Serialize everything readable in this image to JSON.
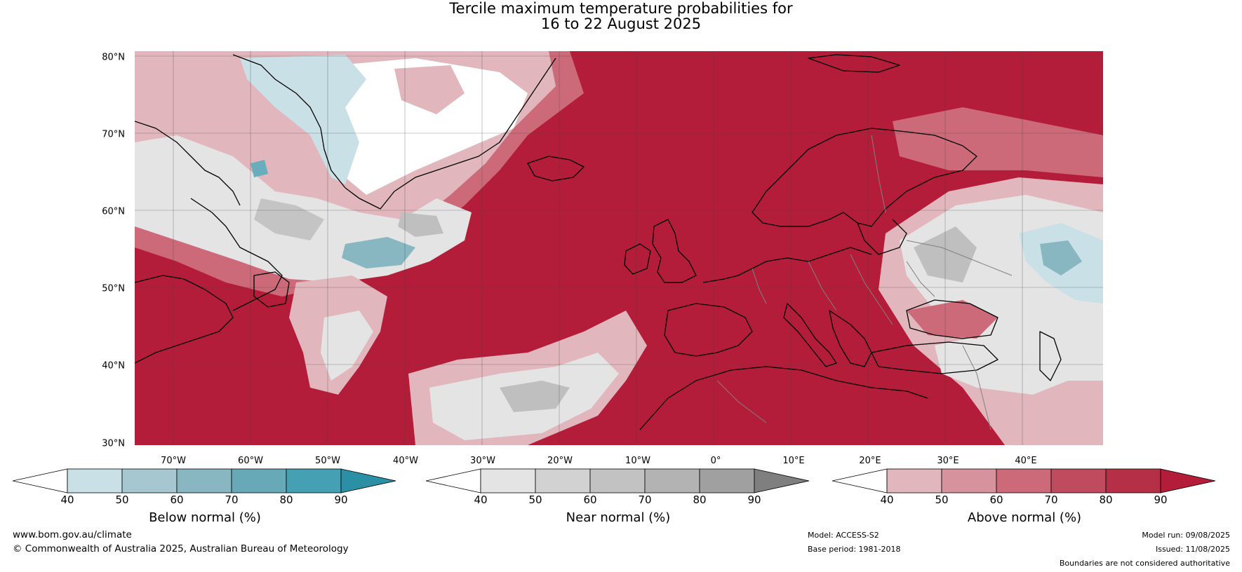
{
  "title": {
    "line1": "Tercile maximum temperature probabilities for",
    "line2": "16 to 22 August 2025"
  },
  "map": {
    "lat_labels": [
      "80°N",
      "70°N",
      "60°N",
      "50°N",
      "40°N",
      "30°N"
    ],
    "lon_labels": [
      "70°W",
      "60°W",
      "50°W",
      "40°W",
      "30°W",
      "20°W",
      "10°W",
      "0°",
      "10°E",
      "20°E",
      "30°E",
      "40°E"
    ],
    "colors": {
      "above_normal_90": "#b31d39",
      "above_normal_70": "#cc6a7a",
      "above_normal_50": "#e1b6bd",
      "near_normal_70": "#bfbfbf",
      "near_normal_50": "#e4e4e4",
      "below_normal_50": "#c9e0e6",
      "below_normal_70": "#6aadbc",
      "coastline": "#000000",
      "borders": "#808080"
    }
  },
  "colorbars": [
    {
      "label": "Below normal (%)",
      "ticks": [
        "40",
        "50",
        "60",
        "70",
        "80",
        "90"
      ],
      "colors": [
        "#ffffff",
        "#c9e0e6",
        "#a6c7cf",
        "#88b7c1",
        "#68a9b7",
        "#45a0b3",
        "#2b8fa6"
      ]
    },
    {
      "label": "Near normal (%)",
      "ticks": [
        "40",
        "50",
        "60",
        "70",
        "80",
        "90"
      ],
      "colors": [
        "#ffffff",
        "#e4e4e4",
        "#d2d2d2",
        "#c2c2c2",
        "#b3b3b3",
        "#a0a0a0",
        "#7f7f7f"
      ]
    },
    {
      "label": "Above normal (%)",
      "ticks": [
        "40",
        "50",
        "60",
        "70",
        "80",
        "90"
      ],
      "colors": [
        "#ffffff",
        "#e1b6bd",
        "#d6929d",
        "#cc6a7a",
        "#c04a5e",
        "#b52f47",
        "#b31d39"
      ]
    }
  ],
  "footer": {
    "website": "www.bom.gov.au/climate",
    "copyright": "© Commonwealth of Australia 2025, Australian Bureau of Meteorology",
    "model": "Model: ACCESS-S2",
    "base_period": "Base period: 1981-2018",
    "model_run": "Model run: 09/08/2025",
    "issued": "Issued: 11/08/2025",
    "disclaimer": "Boundaries are not considered authoritative"
  }
}
